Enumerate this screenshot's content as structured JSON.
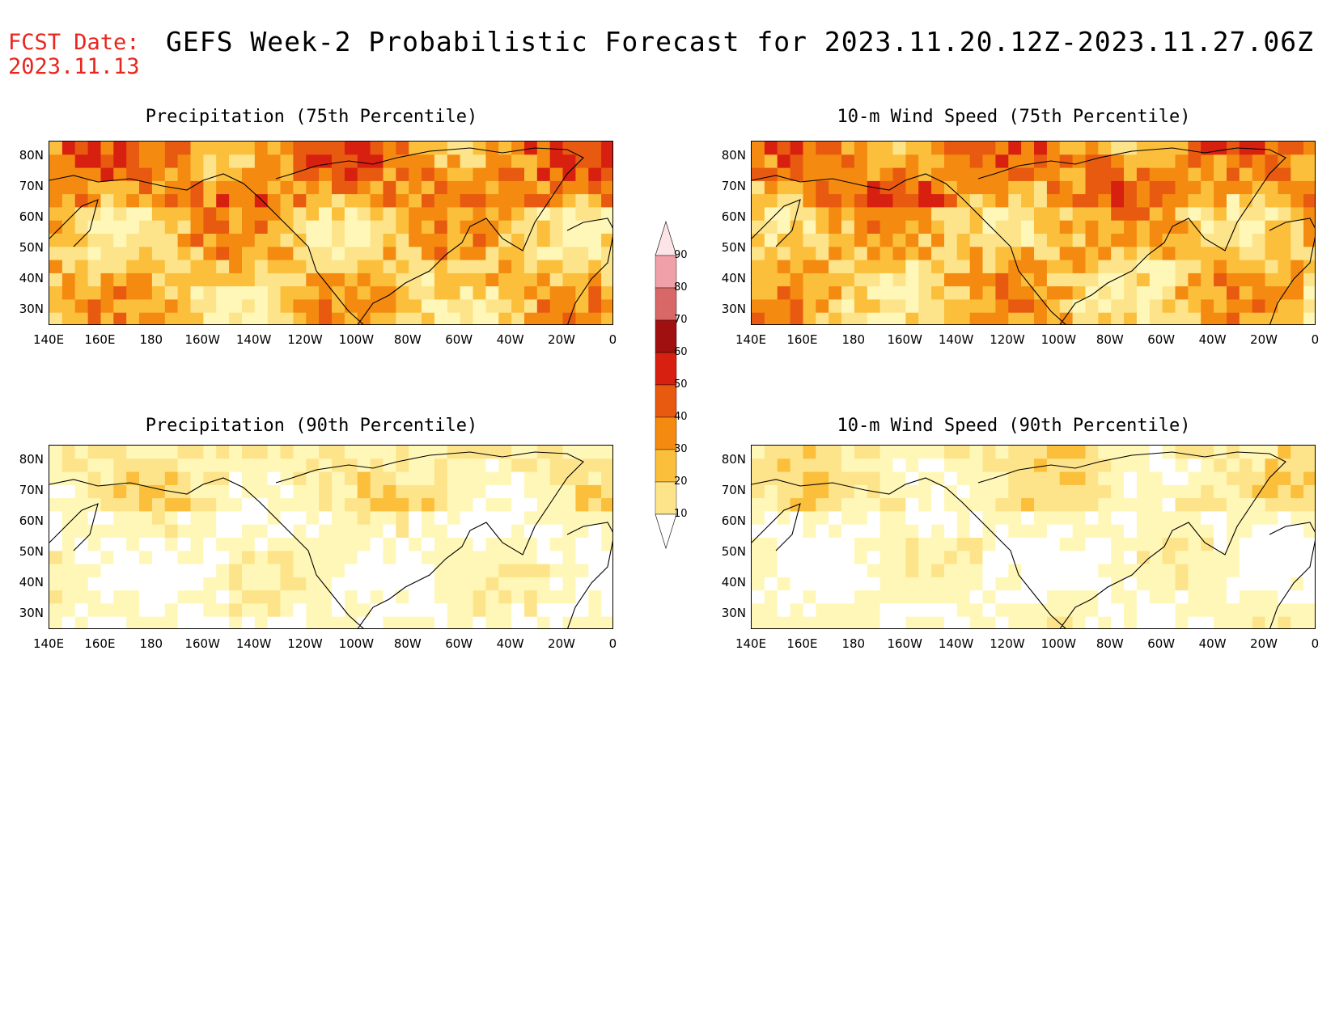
{
  "header": {
    "fcst_label": "FCST Date:",
    "fcst_date": "2023.11.13",
    "title": "GEFS Week-2 Probabilistic Forecast for 2023.11.20.12Z-2023.11.27.06Z"
  },
  "panels": [
    {
      "title": "Precipitation (75th Percentile)",
      "intensity": "high"
    },
    {
      "title": "10-m Wind Speed (75th Percentile)",
      "intensity": "high"
    },
    {
      "title": "Precipitation (90th Percentile)",
      "intensity": "low"
    },
    {
      "title": "10-m Wind Speed (90th Percentile)",
      "intensity": "low"
    }
  ],
  "axes": {
    "lat_labels": [
      "80N",
      "70N",
      "60N",
      "50N",
      "40N",
      "30N"
    ],
    "lon_labels": [
      "140E",
      "160E",
      "180",
      "160W",
      "140W",
      "120W",
      "100W",
      "80W",
      "60W",
      "40W",
      "20W",
      "0"
    ]
  },
  "colorbar": {
    "levels": [
      "10",
      "20",
      "30",
      "40",
      "50",
      "60",
      "70",
      "80",
      "90"
    ],
    "colors": [
      "#fff7b8",
      "#fde48a",
      "#fbbf3c",
      "#f58a10",
      "#e85a10",
      "#d82010",
      "#a01010",
      "#d86868",
      "#f0a0a8",
      "#fde4e6"
    ]
  }
}
